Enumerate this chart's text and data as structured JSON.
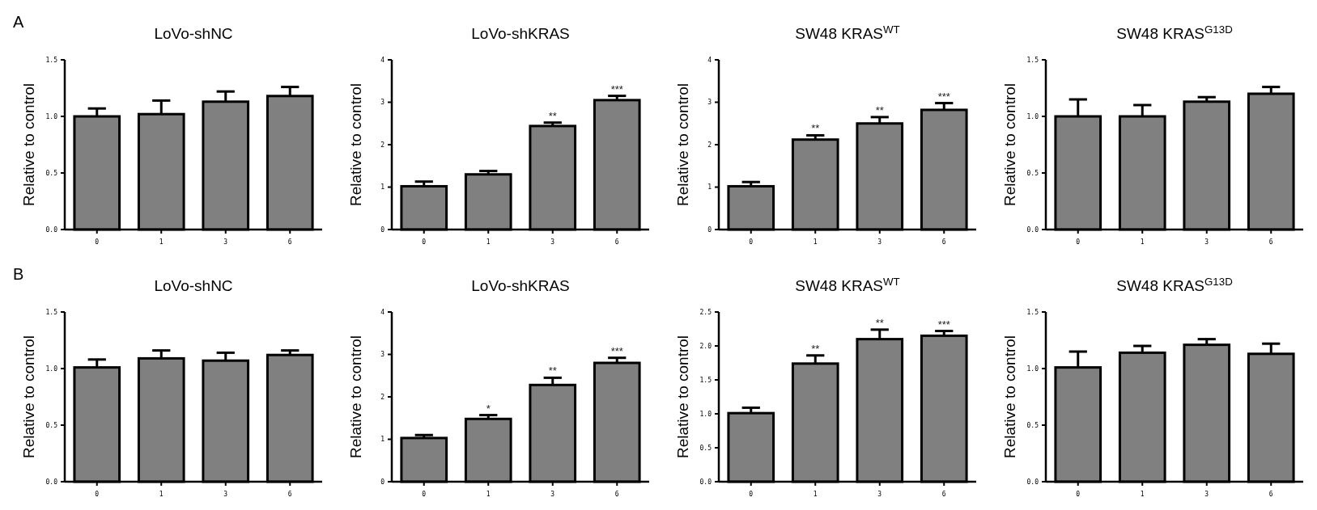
{
  "chart_data": [
    {
      "type": "bar",
      "title": "LoVo-shNC",
      "ylabel": "Relative to control",
      "categories": [
        "0",
        "1",
        "3",
        "6"
      ],
      "color": "#808080",
      "values": [
        1.0,
        1.02,
        1.13,
        1.18
      ],
      "errors": [
        [
          1.0,
          1.07
        ],
        [
          1.02,
          1.14
        ],
        [
          1.13,
          1.22
        ],
        [
          1.18,
          1.26
        ]
      ],
      "ylim": [
        0,
        1.5
      ],
      "yticks": [
        {
          "value": 0,
          "label": "0.0"
        },
        {
          "value": 0.5,
          "label": "0.5"
        },
        {
          "value": 1,
          "label": "1.0"
        },
        {
          "value": 1.5,
          "label": "1.5"
        }
      ],
      "grid": false,
      "annotations": [
        "A"
      ]
    },
    {
      "type": "bar",
      "title": "LoVo-shKRAS",
      "ylabel": "Relative to control",
      "categories": [
        "0",
        "1",
        "3",
        "6"
      ],
      "color": "#808080",
      "values": [
        1.02,
        1.3,
        2.44,
        3.05
      ],
      "errors": [
        [
          1.02,
          1.13
        ],
        [
          1.3,
          1.38
        ],
        [
          2.44,
          2.52
        ],
        [
          3.05,
          3.15
        ]
      ],
      "ylim": [
        0,
        4
      ],
      "yticks": [
        0,
        1,
        2,
        3,
        4
      ],
      "grid": false,
      "annotations": [
        {
          "text": "**",
          "x": "3",
          "y": 2.52
        },
        {
          "text": "***",
          "x": "6",
          "y": 3.15
        }
      ]
    },
    {
      "type": "bar",
      "title": "SW48 KRAS$^{WT}$",
      "ylabel": "Relative to control",
      "categories": [
        "0",
        "1",
        "3",
        "6"
      ],
      "color": "#808080",
      "values": [
        1.02,
        2.12,
        2.5,
        2.82
      ],
      "errors": [
        [
          1.02,
          1.12
        ],
        [
          2.12,
          2.22
        ],
        [
          2.5,
          2.65
        ],
        [
          2.82,
          2.98
        ]
      ],
      "ylim": [
        0,
        4
      ],
      "yticks": [
        0,
        1,
        2,
        3,
        4
      ],
      "grid": false,
      "annotations": [
        {
          "text": "**",
          "x": "1",
          "y": 2.22
        },
        {
          "text": "**",
          "x": "3",
          "y": 2.65
        },
        {
          "text": "***",
          "x": "6",
          "y": 2.98
        }
      ]
    },
    {
      "type": "bar",
      "title": "SW48 KRAS$^{G13D}$",
      "ylabel": "Relative to control",
      "categories": [
        "0",
        "1",
        "3",
        "6"
      ],
      "color": "#808080",
      "values": [
        1.0,
        1.0,
        1.13,
        1.2
      ],
      "errors": [
        [
          1.0,
          1.15
        ],
        [
          1.0,
          1.1
        ],
        [
          1.13,
          1.17
        ],
        [
          1.2,
          1.26
        ]
      ],
      "ylim": [
        0,
        1.5
      ],
      "yticks": [
        {
          "value": 0,
          "label": "0.0"
        },
        {
          "value": 0.5,
          "label": "0.5"
        },
        {
          "value": 1,
          "label": "1.0"
        },
        {
          "value": 1.5,
          "label": "1.5"
        }
      ],
      "grid": false
    },
    {
      "type": "bar",
      "title": "LoVo-shNC",
      "ylabel": "Relative to control",
      "categories": [
        "0",
        "1",
        "3",
        "6"
      ],
      "color": "#808080",
      "values": [
        1.01,
        1.09,
        1.07,
        1.12
      ],
      "errors": [
        [
          1.01,
          1.08
        ],
        [
          1.09,
          1.16
        ],
        [
          1.07,
          1.14
        ],
        [
          1.12,
          1.16
        ]
      ],
      "ylim": [
        0,
        1.5
      ],
      "yticks": [
        {
          "value": 0,
          "label": "0.0"
        },
        {
          "value": 0.5,
          "label": "0.5"
        },
        {
          "value": 1,
          "label": "1.0"
        },
        {
          "value": 1.5,
          "label": "1.5"
        }
      ],
      "grid": false,
      "annotations": [
        "B"
      ]
    },
    {
      "type": "bar",
      "title": "LoVo-shKRAS",
      "ylabel": "Relative to control",
      "categories": [
        "0",
        "1",
        "3",
        "6"
      ],
      "color": "#808080",
      "values": [
        1.03,
        1.48,
        2.28,
        2.8
      ],
      "errors": [
        [
          1.03,
          1.1
        ],
        [
          1.48,
          1.57
        ],
        [
          2.28,
          2.45
        ],
        [
          2.8,
          2.92
        ]
      ],
      "ylim": [
        0,
        4
      ],
      "yticks": [
        0,
        1,
        2,
        3,
        4
      ],
      "grid": false,
      "annotations": [
        {
          "text": "*",
          "x": "1",
          "y": 1.57
        },
        {
          "text": "**",
          "x": "3",
          "y": 2.45
        },
        {
          "text": "***",
          "x": "6",
          "y": 2.92
        }
      ]
    },
    {
      "type": "bar",
      "title": "SW48 KRAS$^{WT}$",
      "ylabel": "Relative to control",
      "categories": [
        "0",
        "1",
        "3",
        "6"
      ],
      "color": "#808080",
      "values": [
        1.01,
        1.74,
        2.1,
        2.15
      ],
      "errors": [
        [
          1.01,
          1.09
        ],
        [
          1.74,
          1.86
        ],
        [
          2.1,
          2.24
        ],
        [
          2.15,
          2.22
        ]
      ],
      "ylim": [
        0,
        2.5
      ],
      "yticks": [
        {
          "value": 0,
          "label": "0.0"
        },
        {
          "value": 0.5,
          "label": "0.5"
        },
        {
          "value": 1,
          "label": "1.0"
        },
        {
          "value": 1.5,
          "label": "1.5"
        },
        {
          "value": 2,
          "label": "2.0"
        },
        {
          "value": 2.5,
          "label": "2.5"
        }
      ],
      "grid": false,
      "annotations": [
        {
          "text": "**",
          "x": "1",
          "y": 1.86
        },
        {
          "text": "**",
          "x": "3",
          "y": 2.24
        },
        {
          "text": "***",
          "x": "6",
          "y": 2.22
        }
      ]
    },
    {
      "type": "bar",
      "title": "SW48 KRAS$^{G13D}$",
      "ylabel": "Relative to control",
      "categories": [
        "0",
        "1",
        "3",
        "6"
      ],
      "color": "#808080",
      "values": [
        1.01,
        1.14,
        1.21,
        1.13
      ],
      "errors": [
        [
          1.01,
          1.15
        ],
        [
          1.14,
          1.2
        ],
        [
          1.21,
          1.26
        ],
        [
          1.13,
          1.22
        ]
      ],
      "ylim": [
        0,
        1.5
      ],
      "yticks": [
        {
          "value": 0,
          "label": "0.0"
        },
        {
          "value": 0.5,
          "label": "0.5"
        },
        {
          "value": 1,
          "label": "1.0"
        },
        {
          "value": 1.5,
          "label": "1.5"
        }
      ],
      "grid": false
    }
  ]
}
